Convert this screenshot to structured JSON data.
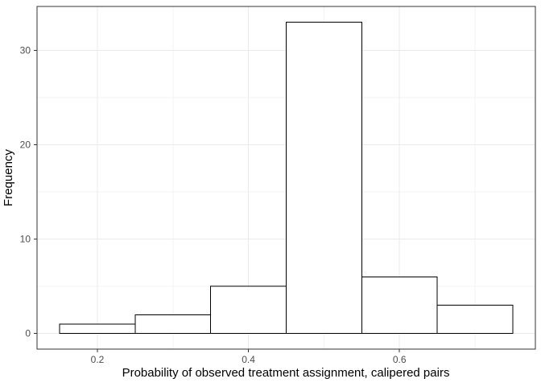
{
  "figure": {
    "background": "#FFFFFF"
  },
  "chart_data": {
    "type": "bar",
    "subtype": "histogram",
    "title": "",
    "xlabel": "Probability of observed treatment assignment, calipered pairs",
    "ylabel": "Frequency",
    "categories": [
      "0.2",
      "0.3",
      "0.4",
      "0.5",
      "0.6",
      "0.7"
    ],
    "values": [
      1,
      2,
      5,
      33,
      6,
      3
    ],
    "bin_edges": [
      0.15,
      0.25,
      0.35,
      0.45,
      0.55,
      0.65,
      0.75
    ],
    "counts": [
      1,
      2,
      5,
      33,
      6,
      3
    ],
    "x_ticks": {
      "values": [
        0.2,
        0.4,
        0.6
      ],
      "labels": [
        "0.2",
        "0.4",
        "0.6"
      ]
    },
    "y_ticks": {
      "values": [
        0,
        10,
        20,
        30
      ],
      "labels": [
        "0",
        "10",
        "20",
        "30"
      ]
    },
    "x_minor_ticks": [
      0.3,
      0.5,
      0.7
    ],
    "y_minor_ticks": [
      5,
      15,
      25
    ],
    "xlim": [
      0.12,
      0.78
    ],
    "ylim": [
      -1.65,
      34.65
    ],
    "grid": "major+minor",
    "legend": "none",
    "style": {
      "panel_bg": "#FFFFFF",
      "panel_border": "#333333",
      "grid_major_color": "#EBEBEB",
      "grid_minor_color": "#F3F3F3",
      "bar_fill": "#FFFFFF",
      "bar_stroke": "#000000",
      "tick_mark_color": "#333333",
      "tick_label_color": "#4D4D4D",
      "axis_title_color": "#000000"
    }
  }
}
